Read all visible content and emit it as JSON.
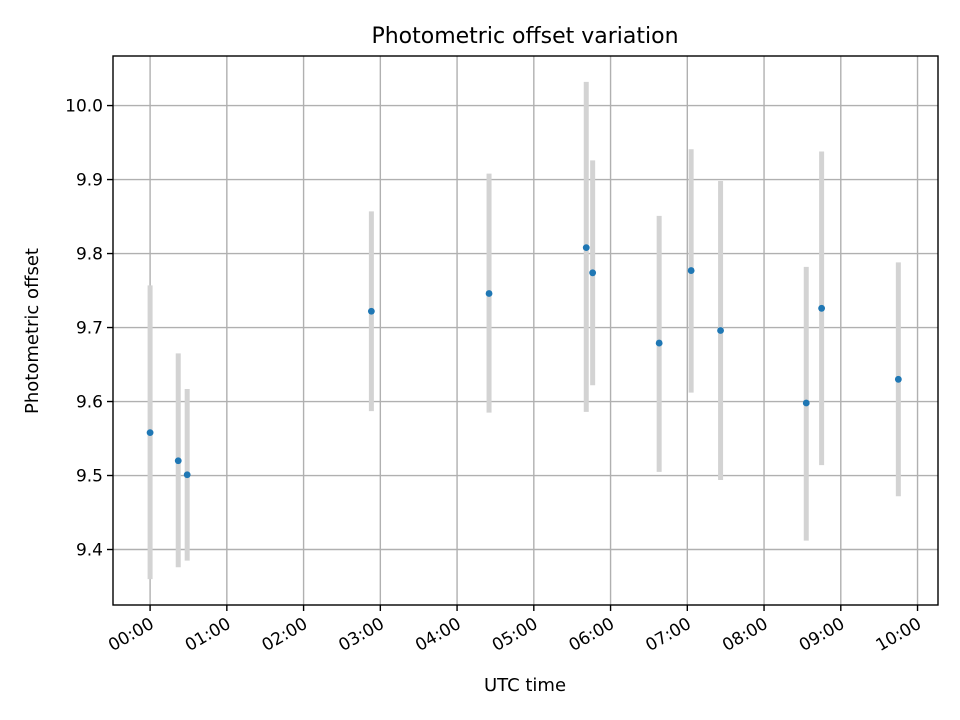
{
  "chart_data": {
    "type": "scatter",
    "title": "Photometric offset variation",
    "xlabel": "UTC time",
    "ylabel": "Photometric offset",
    "x_ticks": [
      "00:00",
      "01:00",
      "02:00",
      "03:00",
      "04:00",
      "05:00",
      "06:00",
      "07:00",
      "08:00",
      "09:00",
      "10:00"
    ],
    "y_ticks": [
      "9.4",
      "9.5",
      "9.6",
      "9.7",
      "9.8",
      "9.9",
      "10.0"
    ],
    "xlim": [
      "23:31",
      "10:16"
    ],
    "ylim": [
      9.325,
      10.067
    ],
    "grid": true,
    "marker_color": "#1f77b4",
    "errorbar_color": "#d3d3d3",
    "points": [
      {
        "x": "00:00",
        "y": 9.558,
        "lo": 9.36,
        "hi": 9.757
      },
      {
        "x": "00:22",
        "y": 9.52,
        "lo": 9.376,
        "hi": 9.665
      },
      {
        "x": "00:29",
        "y": 9.501,
        "lo": 9.385,
        "hi": 9.617
      },
      {
        "x": "02:53",
        "y": 9.722,
        "lo": 9.587,
        "hi": 9.857
      },
      {
        "x": "04:25",
        "y": 9.746,
        "lo": 9.585,
        "hi": 9.908
      },
      {
        "x": "05:41",
        "y": 9.808,
        "lo": 9.586,
        "hi": 10.032
      },
      {
        "x": "05:46",
        "y": 9.774,
        "lo": 9.622,
        "hi": 9.926
      },
      {
        "x": "06:38",
        "y": 9.679,
        "lo": 9.505,
        "hi": 9.851
      },
      {
        "x": "07:03",
        "y": 9.777,
        "lo": 9.612,
        "hi": 9.941
      },
      {
        "x": "07:26",
        "y": 9.696,
        "lo": 9.494,
        "hi": 9.898
      },
      {
        "x": "08:33",
        "y": 9.598,
        "lo": 9.412,
        "hi": 9.782
      },
      {
        "x": "08:45",
        "y": 9.726,
        "lo": 9.514,
        "hi": 9.938
      },
      {
        "x": "09:45",
        "y": 9.63,
        "lo": 9.472,
        "hi": 9.788
      }
    ]
  }
}
